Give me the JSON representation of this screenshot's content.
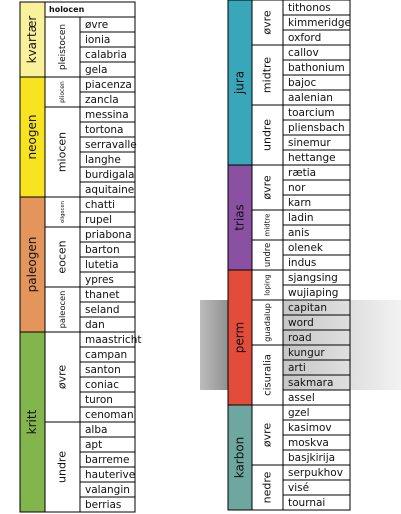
{
  "left_table": {
    "periods": [
      {
        "name": "kvartær",
        "color": "#f9f29b",
        "epochs": [
          {
            "name": "holocen",
            "stages": []
          },
          {
            "name": "pleistocen",
            "stages": [
              "øvre",
              "ionia",
              "calabria",
              "gela"
            ]
          }
        ]
      },
      {
        "name": "neogen",
        "color": "#f7e31f",
        "epochs": [
          {
            "name": "pliocen",
            "stages": [
              "piacenza",
              "zancla"
            ]
          },
          {
            "name": "miocen",
            "stages": [
              "messina",
              "tortona",
              "serravalle",
              "langhe",
              "burdigala",
              "aquitaine"
            ]
          }
        ]
      },
      {
        "name": "paleogen",
        "color": "#e3955b",
        "epochs": [
          {
            "name": "oligocen",
            "stages": [
              "chatti",
              "rupel"
            ]
          },
          {
            "name": "eocen",
            "stages": [
              "priabona",
              "barton",
              "lutetia",
              "ypres"
            ]
          },
          {
            "name": "paleocen",
            "stages": [
              "thanet",
              "seland",
              "dan"
            ]
          }
        ]
      },
      {
        "name": "kritt",
        "color": "#82b54c",
        "epochs": [
          {
            "name": "øvre",
            "stages": [
              "maastricht",
              "campan",
              "santon",
              "coniac",
              "turon",
              "cenoman"
            ]
          },
          {
            "name": "undre",
            "stages": [
              "alba",
              "apt",
              "barreme",
              "hauterive",
              "valangin",
              "berrias"
            ]
          }
        ]
      }
    ]
  },
  "right_table": {
    "periods": [
      {
        "name": "jura",
        "color": "#3aa6b9",
        "epochs": [
          {
            "name": "øvre",
            "stages": [
              "tithonos",
              "kimmeridge",
              "oxford"
            ]
          },
          {
            "name": "midtre",
            "stages": [
              "callov",
              "bathonium",
              "bajoc",
              "aalenian"
            ]
          },
          {
            "name": "undre",
            "stages": [
              "toarcium",
              "pliensbach",
              "sinemur",
              "hettange"
            ]
          }
        ]
      },
      {
        "name": "trias",
        "color": "#8a50a1",
        "epochs": [
          {
            "name": "øvre",
            "stages": [
              "rætia",
              "nor",
              "karn"
            ]
          },
          {
            "name": "midtre",
            "stages": [
              "ladin",
              "anis"
            ]
          },
          {
            "name": "undre",
            "stages": [
              "olenek",
              "indus"
            ]
          }
        ]
      },
      {
        "name": "perm",
        "color": "#e24c3b",
        "epochs": [
          {
            "name": "loping",
            "stages": [
              "sjangsing",
              "wujiaping"
            ]
          },
          {
            "name": "guadalup",
            "stages": [
              "capitan",
              "word",
              "road"
            ]
          },
          {
            "name": "cisuralia",
            "stages": [
              "kungur",
              "arti",
              "sakmara",
              "assel"
            ]
          }
        ]
      },
      {
        "name": "karbon",
        "color": "#6ea7a0",
        "epochs": [
          {
            "name": "øvre",
            "stages": [
              "gzel",
              "kasimov",
              "moskva",
              "basjkirija"
            ]
          },
          {
            "name": "nedre",
            "stages": [
              "serpukhov",
              "visé",
              "tournai"
            ]
          }
        ]
      }
    ]
  }
}
